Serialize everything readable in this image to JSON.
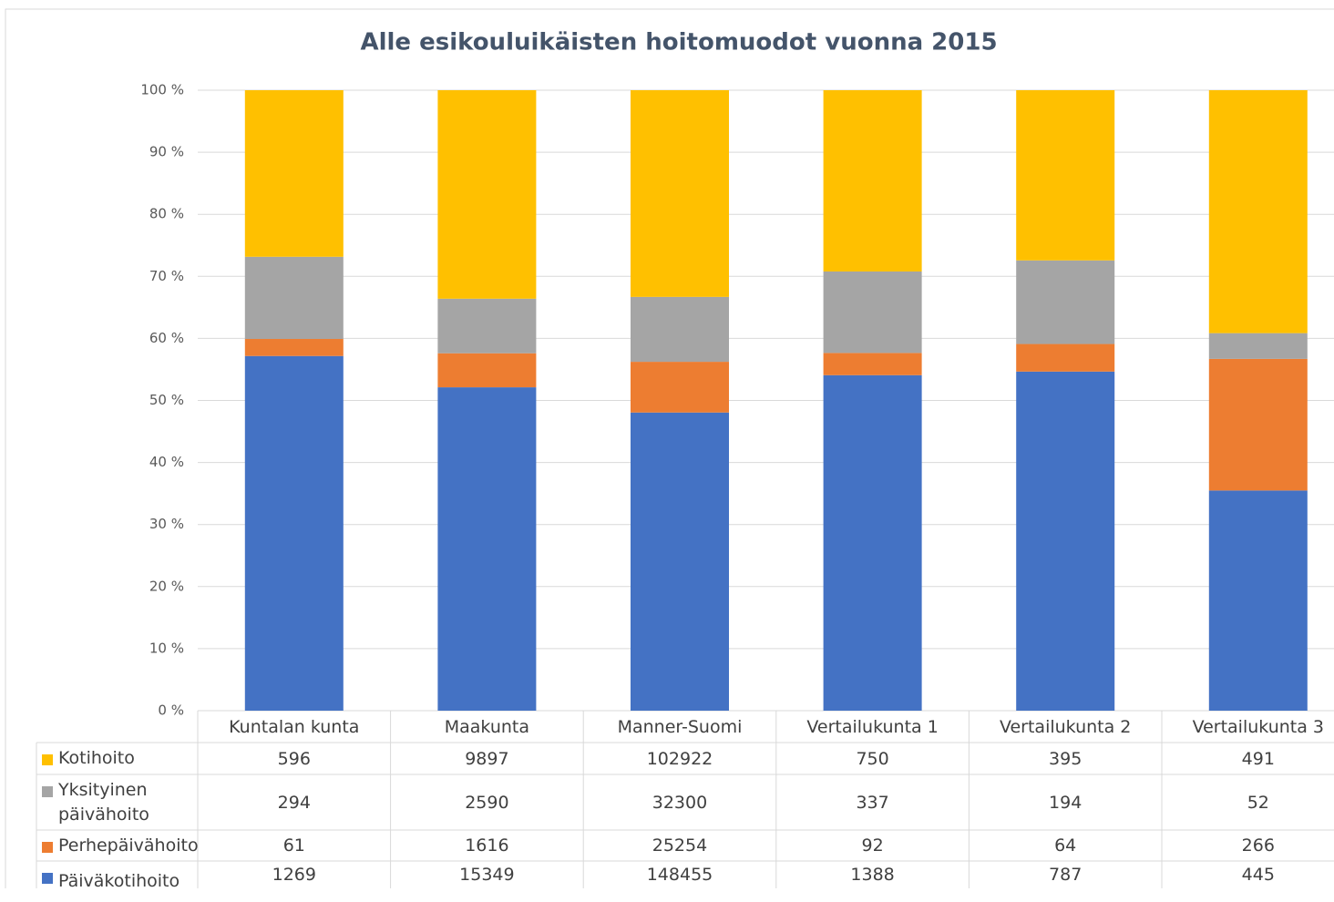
{
  "chart_data": {
    "type": "bar",
    "stacking": "percent",
    "title": "Alle esikouluikäisten hoitomuodot vuonna 2015",
    "categories": [
      "Kuntalan kunta",
      "Maakunta",
      "Manner-Suomi",
      "Vertailukunta 1",
      "Vertailukunta 2",
      "Vertailukunta 3"
    ],
    "series": [
      {
        "name": "Päiväkotihoito",
        "color": "#4472c4",
        "values": [
          1269,
          15349,
          148455,
          1388,
          787,
          445
        ]
      },
      {
        "name": "Perhepäivähoito",
        "color": "#ed7d31",
        "values": [
          61,
          1616,
          25254,
          92,
          64,
          266
        ]
      },
      {
        "name": "Yksityinen päivähoito",
        "color": "#a5a5a5",
        "values": [
          294,
          2590,
          32300,
          337,
          194,
          52
        ]
      },
      {
        "name": "Kotihoito",
        "color": "#ffc000",
        "values": [
          596,
          9897,
          102922,
          750,
          395,
          491
        ]
      }
    ],
    "ylim": [
      0,
      100
    ],
    "yticks": [
      {
        "value": 0,
        "label": "0 %"
      },
      {
        "value": 10,
        "label": "10 %"
      },
      {
        "value": 20,
        "label": "20 %"
      },
      {
        "value": 30,
        "label": "30 %"
      },
      {
        "value": 40,
        "label": "40 %"
      },
      {
        "value": 50,
        "label": "50 %"
      },
      {
        "value": 60,
        "label": "60 %"
      },
      {
        "value": 70,
        "label": "70 %"
      },
      {
        "value": 80,
        "label": "80 %"
      },
      {
        "value": 90,
        "label": "90 %"
      },
      {
        "value": 100,
        "label": "100 %"
      }
    ],
    "grid": true,
    "data_table": true
  }
}
